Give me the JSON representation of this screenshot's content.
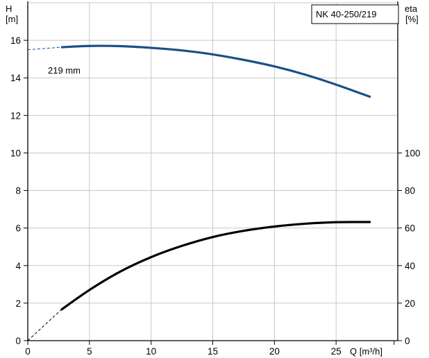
{
  "chart_data": {
    "type": "line",
    "title": "NK 40-250/219",
    "left_axis": {
      "label": "H",
      "unit": "[m]",
      "ylim": [
        0,
        18
      ],
      "ticks": [
        0,
        2,
        4,
        6,
        8,
        10,
        12,
        14,
        16
      ]
    },
    "right_axis": {
      "label": "eta",
      "unit": "[%]",
      "ylim": [
        0,
        180
      ],
      "ticks": [
        0,
        20,
        40,
        60,
        80,
        100
      ]
    },
    "x_axis": {
      "label": "Q [m³/h]",
      "xlim": [
        0,
        30
      ],
      "ticks": [
        0,
        5,
        10,
        15,
        20,
        25
      ]
    },
    "grid": true,
    "series": [
      {
        "name": "219 mm",
        "axis": "left",
        "color": "#1b4f87",
        "extrapolated": {
          "x": [
            0,
            2.7
          ],
          "y": [
            15.5,
            15.63
          ]
        },
        "x": [
          2.7,
          5,
          7.5,
          10,
          12.5,
          15,
          17.5,
          20,
          22.5,
          25,
          27.8
        ],
        "y": [
          15.63,
          15.7,
          15.69,
          15.6,
          15.46,
          15.25,
          14.96,
          14.61,
          14.17,
          13.64,
          12.98
        ]
      },
      {
        "name": "eta",
        "axis": "right",
        "color": "#000000",
        "extrapolated": {
          "x": [
            0,
            2.7
          ],
          "y": [
            0,
            16.4
          ]
        },
        "x": [
          2.7,
          5,
          7.5,
          10,
          12.5,
          15,
          17.5,
          20,
          22.5,
          25,
          27.8
        ],
        "y": [
          16.4,
          27.0,
          36.8,
          44.5,
          50.5,
          55.2,
          58.5,
          60.8,
          62.3,
          63.1,
          63.2
        ]
      }
    ]
  }
}
